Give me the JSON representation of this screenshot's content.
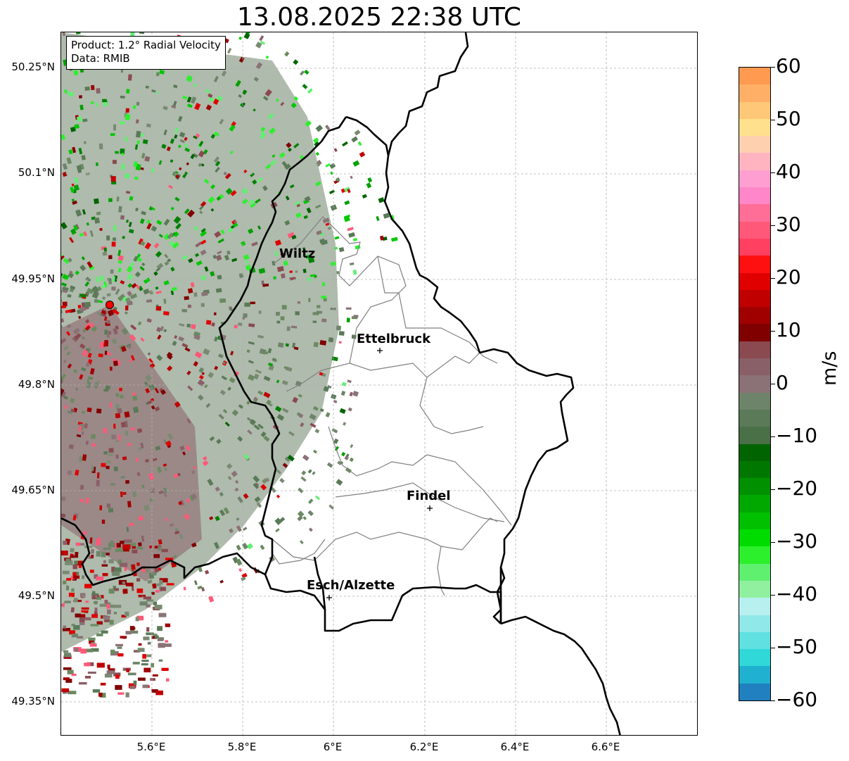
{
  "title": "13.08.2025 22:38 UTC",
  "info": {
    "product": "Product: 1.2° Radial Velocity",
    "source": "Data: RMIB"
  },
  "lat_labels": [
    "50.25°N",
    "50.1°N",
    "49.95°N",
    "49.8°N",
    "49.65°N",
    "49.5°N",
    "49.35°N"
  ],
  "lon_labels": [
    "5.6°E",
    "5.8°E",
    "6°E",
    "6.2°E",
    "6.4°E",
    "6.6°E"
  ],
  "colorbar": {
    "unit": "m/s",
    "range": [
      -60,
      60
    ],
    "ticks": [
      "60",
      "50",
      "40",
      "30",
      "20",
      "10",
      "0",
      "−10",
      "−20",
      "−30",
      "−40",
      "−50",
      "−60"
    ],
    "colors_top_to_bottom": [
      "#ff9a50",
      "#ffb066",
      "#ffc778",
      "#ffe08c",
      "#ffd0b0",
      "#ffb4c0",
      "#ff9ed0",
      "#ff86c8",
      "#ff6e96",
      "#ff5878",
      "#ff4060",
      "#ff1010",
      "#e00000",
      "#c00000",
      "#a00000",
      "#800000",
      "#8a4a50",
      "#8a6068",
      "#8a7276",
      "#6e846a",
      "#5a7a58",
      "#4a7048",
      "#006400",
      "#007800",
      "#009000",
      "#00a800",
      "#00c000",
      "#00dc00",
      "#2cf02c",
      "#60f070",
      "#90f0a0",
      "#b8f0f0",
      "#90e8e8",
      "#60e0e0",
      "#30d8d8",
      "#20b0d0",
      "#2080c0"
    ],
    "accent_colors": {
      "inbound": "#00c800",
      "outbound": "#c80000",
      "near_zero": "#6a8a60"
    }
  },
  "cities": [
    {
      "name": "Wiltz"
    },
    {
      "name": "Ettelbruck"
    },
    {
      "name": "Findel"
    },
    {
      "name": "Esch/Alzette"
    }
  ],
  "radar_site": {
    "color": "#ff0000"
  }
}
